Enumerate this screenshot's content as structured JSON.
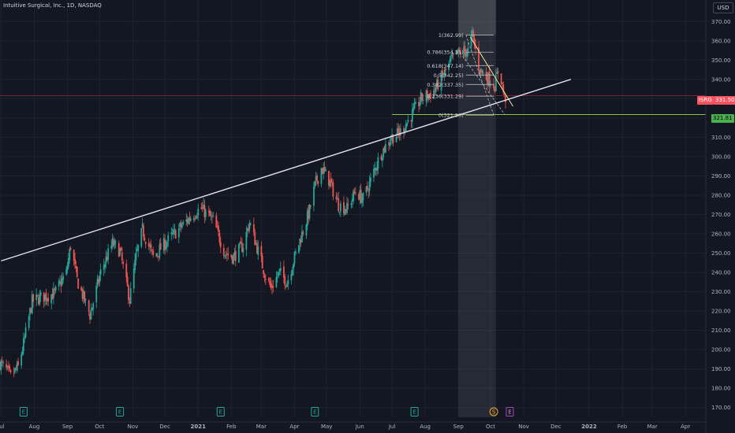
{
  "header": {
    "title": "Intuitive Surgical, Inc., 1D, NASDAQ",
    "currency": "USD"
  },
  "price_tags": {
    "symbol": "ISRG",
    "last_price": "331.50",
    "level_price": "321.81"
  },
  "colors": {
    "background": "#131722",
    "up": "#26a69a",
    "down": "#ef5350",
    "trendline": "#e8dff5",
    "level": "#8bc34a",
    "fib": "#b2b5be",
    "channel": "#f5e79e",
    "current": "#f23645"
  },
  "chart_data": {
    "type": "candlestick",
    "title": "Intuitive Surgical, Inc., 1D, NASDAQ",
    "ylim": [
      165,
      375
    ],
    "y_ticks": [
      170,
      180,
      190,
      200,
      210,
      220,
      230,
      240,
      250,
      260,
      270,
      280,
      290,
      300,
      310,
      320,
      330,
      340,
      350,
      360,
      370
    ],
    "x_ticks": [
      "Jul",
      "Aug",
      "Sep",
      "Oct",
      "Nov",
      "Dec",
      "2021",
      "Feb",
      "Mar",
      "Apr",
      "May",
      "Jun",
      "Jul",
      "Aug",
      "Sep",
      "Oct",
      "Nov",
      "Dec",
      "2022",
      "Feb",
      "Mar",
      "Apr"
    ],
    "x_range": [
      "2020-06-30",
      "2022-04-20"
    ],
    "price_path": [
      [
        "2020-06-30",
        193
      ],
      [
        "2020-07-05",
        190
      ],
      [
        "2020-07-10",
        186
      ],
      [
        "2020-07-17",
        191
      ],
      [
        "2020-07-22",
        203
      ],
      [
        "2020-07-30",
        225
      ],
      [
        "2020-08-07",
        227
      ],
      [
        "2020-08-20",
        229
      ],
      [
        "2020-08-31",
        240
      ],
      [
        "2020-09-04",
        254
      ],
      [
        "2020-09-10",
        236
      ],
      [
        "2020-09-22",
        218
      ],
      [
        "2020-10-02",
        240
      ],
      [
        "2020-10-13",
        255
      ],
      [
        "2020-10-20",
        251
      ],
      [
        "2020-10-29",
        226
      ],
      [
        "2020-11-04",
        248
      ],
      [
        "2020-11-10",
        262
      ],
      [
        "2020-11-20",
        248
      ],
      [
        "2020-12-01",
        255
      ],
      [
        "2020-12-20",
        266
      ],
      [
        "2020-12-31",
        272
      ],
      [
        "2021-01-04",
        273
      ],
      [
        "2021-01-15",
        267
      ],
      [
        "2021-01-26",
        250
      ],
      [
        "2021-02-03",
        248
      ],
      [
        "2021-02-12",
        254
      ],
      [
        "2021-02-18",
        266
      ],
      [
        "2021-02-25",
        253
      ],
      [
        "2021-03-05",
        238
      ],
      [
        "2021-03-10",
        232
      ],
      [
        "2021-03-18",
        240
      ],
      [
        "2021-03-25",
        235
      ],
      [
        "2021-04-05",
        255
      ],
      [
        "2021-04-15",
        272
      ],
      [
        "2021-04-20",
        285
      ],
      [
        "2021-04-26",
        294
      ],
      [
        "2021-05-03",
        288
      ],
      [
        "2021-05-12",
        275
      ],
      [
        "2021-05-20",
        273
      ],
      [
        "2021-05-28",
        282
      ],
      [
        "2021-06-04",
        278
      ],
      [
        "2021-06-10",
        286
      ],
      [
        "2021-06-20",
        301
      ],
      [
        "2021-06-30",
        310
      ],
      [
        "2021-07-08",
        312
      ],
      [
        "2021-07-20",
        322
      ],
      [
        "2021-07-28",
        330
      ],
      [
        "2021-08-08",
        333
      ],
      [
        "2021-08-22",
        346
      ],
      [
        "2021-08-28",
        352
      ],
      [
        "2021-09-03",
        354
      ],
      [
        "2021-09-10",
        355
      ],
      [
        "2021-09-14",
        363
      ],
      [
        "2021-09-21",
        345
      ],
      [
        "2021-09-28",
        341
      ],
      [
        "2021-10-05",
        337
      ],
      [
        "2021-10-09",
        347
      ],
      [
        "2021-10-14",
        330
      ],
      [
        "2021-10-17",
        331.5
      ]
    ],
    "trendline": {
      "from": [
        "2020-07-01",
        246
      ],
      "to": [
        "2021-12-15",
        340
      ]
    },
    "horizontal_levels": [
      {
        "price": 321.81,
        "from": "2021-07-01",
        "to": "2022-04-20"
      },
      {
        "price": 331.5,
        "from": "2020-06-30",
        "to": "2022-04-20"
      }
    ],
    "fibonacci": {
      "from": "2021-09-08",
      "to": "2021-10-04",
      "levels": [
        {
          "ratio": "1",
          "price": 362.99,
          "label": "1(362.99)"
        },
        {
          "ratio": "0.786",
          "price": 354.11,
          "label": "0.786(354.11)"
        },
        {
          "ratio": "0.618",
          "price": 347.14,
          "label": "0.618(347.14)"
        },
        {
          "ratio": "0.5",
          "price": 342.25,
          "label": "0.5(342.25)"
        },
        {
          "ratio": "0.382",
          "price": 337.35,
          "label": "0.382(337.35)"
        },
        {
          "ratio": "0.236",
          "price": 331.29,
          "label": "0.236(331.29)"
        },
        {
          "ratio": "0",
          "price": 321.5,
          "label": "0(321.50)"
        }
      ]
    },
    "highlight_range": {
      "from": "2021-09-01",
      "to": "2021-10-06"
    },
    "channel": {
      "upper": [
        [
          "2021-09-12",
          362
        ],
        [
          "2021-10-22",
          326
        ]
      ],
      "lower": [
        [
          "2021-09-05",
          352
        ],
        [
          "2021-10-14",
          322
        ]
      ]
    },
    "events": [
      {
        "date": "2020-07-22",
        "label": "E"
      },
      {
        "date": "2020-10-20",
        "label": "E"
      },
      {
        "date": "2021-01-22",
        "label": "E"
      },
      {
        "date": "2021-04-20",
        "label": "E"
      },
      {
        "date": "2021-07-22",
        "label": "E"
      },
      {
        "date": "2021-10-04",
        "label": "S"
      },
      {
        "date": "2021-10-19",
        "label": "E"
      }
    ]
  }
}
